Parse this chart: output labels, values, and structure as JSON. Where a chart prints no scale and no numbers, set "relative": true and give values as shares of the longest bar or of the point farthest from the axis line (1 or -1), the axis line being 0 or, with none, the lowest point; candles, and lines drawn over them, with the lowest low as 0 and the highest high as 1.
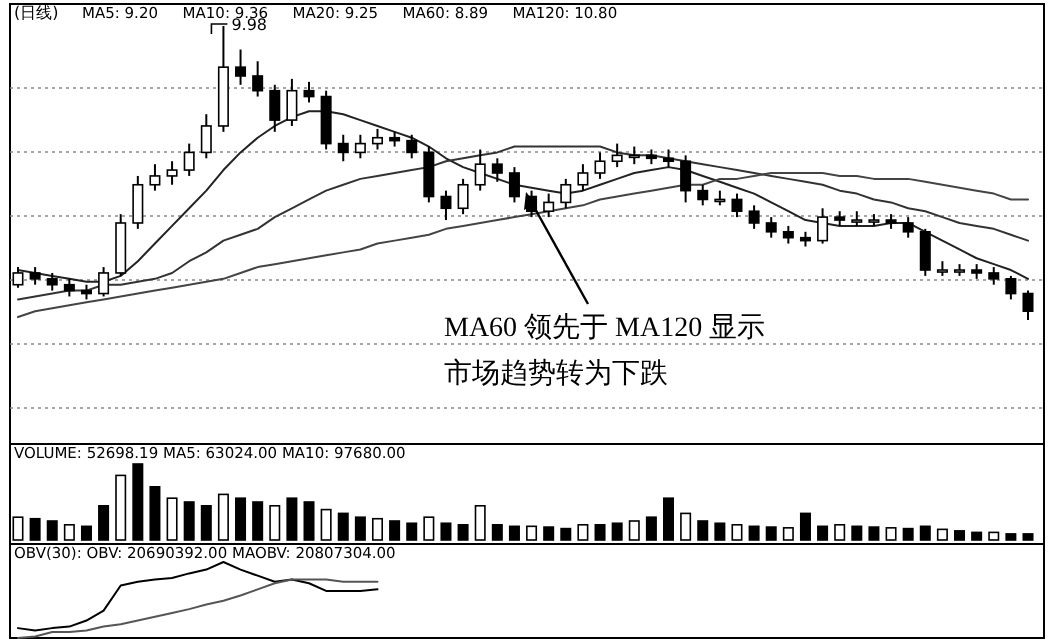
{
  "chart_data": [
    {
      "type": "candlestick",
      "title": "(日线)",
      "relative": true,
      "grid": "y",
      "categories": [
        null,
        null,
        null,
        null,
        null,
        null,
        null,
        null,
        null,
        null,
        null,
        null,
        null,
        null,
        null,
        null,
        null,
        null,
        null,
        null,
        null,
        null,
        null,
        null,
        null,
        null,
        null,
        null,
        null,
        null,
        null,
        null,
        null,
        null,
        null,
        null,
        null,
        null,
        null,
        null,
        null,
        null,
        null,
        null,
        null,
        null,
        null,
        null,
        null,
        null,
        null,
        null,
        null,
        null,
        null,
        null,
        null,
        null,
        null,
        null
      ],
      "ohlc": [
        [
          0.12,
          0.18,
          0.11,
          0.16
        ],
        [
          0.16,
          0.18,
          0.12,
          0.14
        ],
        [
          0.14,
          0.16,
          0.1,
          0.12
        ],
        [
          0.12,
          0.14,
          0.08,
          0.1
        ],
        [
          0.1,
          0.12,
          0.07,
          0.09
        ],
        [
          0.09,
          0.18,
          0.08,
          0.16
        ],
        [
          0.16,
          0.36,
          0.15,
          0.33
        ],
        [
          0.33,
          0.49,
          0.31,
          0.46
        ],
        [
          0.46,
          0.53,
          0.44,
          0.49
        ],
        [
          0.49,
          0.54,
          0.46,
          0.51
        ],
        [
          0.51,
          0.6,
          0.49,
          0.57
        ],
        [
          0.57,
          0.7,
          0.55,
          0.66
        ],
        [
          0.66,
          1.0,
          0.64,
          0.86
        ],
        [
          0.86,
          0.92,
          0.8,
          0.83
        ],
        [
          0.83,
          0.88,
          0.76,
          0.78
        ],
        [
          0.78,
          0.8,
          0.64,
          0.68
        ],
        [
          0.68,
          0.82,
          0.66,
          0.78
        ],
        [
          0.78,
          0.81,
          0.74,
          0.76
        ],
        [
          0.76,
          0.78,
          0.58,
          0.6
        ],
        [
          0.6,
          0.63,
          0.54,
          0.57
        ],
        [
          0.57,
          0.63,
          0.55,
          0.6
        ],
        [
          0.6,
          0.65,
          0.58,
          0.62
        ],
        [
          0.62,
          0.64,
          0.59,
          0.61
        ],
        [
          0.61,
          0.63,
          0.55,
          0.57
        ],
        [
          0.57,
          0.59,
          0.4,
          0.42
        ],
        [
          0.42,
          0.44,
          0.34,
          0.38
        ],
        [
          0.38,
          0.48,
          0.36,
          0.46
        ],
        [
          0.46,
          0.58,
          0.44,
          0.53
        ],
        [
          0.53,
          0.55,
          0.47,
          0.5
        ],
        [
          0.5,
          0.52,
          0.4,
          0.42
        ],
        [
          0.42,
          0.44,
          0.35,
          0.37
        ],
        [
          0.37,
          0.43,
          0.35,
          0.4
        ],
        [
          0.4,
          0.48,
          0.38,
          0.46
        ],
        [
          0.46,
          0.53,
          0.44,
          0.5
        ],
        [
          0.5,
          0.57,
          0.48,
          0.54
        ],
        [
          0.54,
          0.6,
          0.52,
          0.56
        ],
        [
          0.56,
          0.59,
          0.53,
          0.56
        ],
        [
          0.56,
          0.58,
          0.53,
          0.55
        ],
        [
          0.55,
          0.58,
          0.52,
          0.54
        ],
        [
          0.54,
          0.56,
          0.4,
          0.44
        ],
        [
          0.44,
          0.46,
          0.39,
          0.41
        ],
        [
          0.41,
          0.44,
          0.39,
          0.41
        ],
        [
          0.41,
          0.43,
          0.35,
          0.37
        ],
        [
          0.37,
          0.39,
          0.31,
          0.33
        ],
        [
          0.33,
          0.35,
          0.28,
          0.3
        ],
        [
          0.3,
          0.32,
          0.26,
          0.28
        ],
        [
          0.28,
          0.3,
          0.25,
          0.27
        ],
        [
          0.27,
          0.38,
          0.26,
          0.35
        ],
        [
          0.35,
          0.37,
          0.32,
          0.34
        ],
        [
          0.34,
          0.37,
          0.32,
          0.34
        ],
        [
          0.34,
          0.36,
          0.32,
          0.34
        ],
        [
          0.34,
          0.36,
          0.31,
          0.33
        ],
        [
          0.33,
          0.35,
          0.28,
          0.3
        ],
        [
          0.3,
          0.31,
          0.15,
          0.17
        ],
        [
          0.17,
          0.2,
          0.15,
          0.17
        ],
        [
          0.17,
          0.19,
          0.15,
          0.17
        ],
        [
          0.17,
          0.19,
          0.14,
          0.16
        ],
        [
          0.16,
          0.18,
          0.12,
          0.14
        ],
        [
          0.14,
          0.15,
          0.07,
          0.09
        ],
        [
          0.09,
          0.1,
          0.0,
          0.03
        ]
      ],
      "series": [
        {
          "type": "line",
          "color": "#222222",
          "values": [
            0.17,
            0.16,
            0.15,
            0.14,
            0.13,
            0.13,
            0.15,
            0.2,
            0.26,
            0.32,
            0.38,
            0.44,
            0.51,
            0.57,
            0.62,
            0.66,
            0.69,
            0.71,
            0.71,
            0.7,
            0.68,
            0.66,
            0.64,
            0.62,
            0.59,
            0.55,
            0.52,
            0.5,
            0.48,
            0.46,
            0.45,
            0.44,
            0.43,
            0.44,
            0.46,
            0.48,
            0.5,
            0.51,
            0.52,
            0.51,
            0.49,
            0.47,
            0.45,
            0.43,
            0.4,
            0.37,
            0.34,
            0.33,
            0.32,
            0.32,
            0.32,
            0.33,
            0.33,
            0.3,
            0.27,
            0.24,
            0.21,
            0.19,
            0.17,
            0.14
          ]
        },
        {
          "type": "line",
          "color": "#333333",
          "values": [
            0.07,
            0.08,
            0.09,
            0.1,
            0.1,
            0.12,
            0.12,
            0.13,
            0.14,
            0.16,
            0.2,
            0.23,
            0.27,
            0.29,
            0.31,
            0.35,
            0.38,
            0.41,
            0.44,
            0.46,
            0.48,
            0.49,
            0.5,
            0.51,
            0.52,
            0.54,
            0.55,
            0.56,
            0.57,
            0.59,
            0.59,
            0.59,
            0.59,
            0.59,
            0.59,
            0.57,
            0.56,
            0.56,
            0.55,
            0.54,
            0.53,
            0.52,
            0.51,
            0.5,
            0.49,
            0.48,
            0.47,
            0.46,
            0.44,
            0.43,
            0.41,
            0.4,
            0.38,
            0.37,
            0.35,
            0.33,
            0.32,
            0.31,
            0.29,
            0.27
          ]
        },
        {
          "type": "line",
          "color": "#444444",
          "values": [
            0.01,
            0.03,
            0.04,
            0.05,
            0.06,
            0.07,
            0.08,
            0.09,
            0.1,
            0.11,
            0.12,
            0.13,
            0.14,
            0.16,
            0.18,
            0.19,
            0.2,
            0.21,
            0.22,
            0.23,
            0.24,
            0.26,
            0.27,
            0.28,
            0.29,
            0.31,
            0.32,
            0.33,
            0.34,
            0.35,
            0.36,
            0.37,
            0.38,
            0.39,
            0.41,
            0.42,
            0.43,
            0.44,
            0.45,
            0.46,
            0.46,
            0.48,
            0.48,
            0.49,
            0.5,
            0.5,
            0.5,
            0.5,
            0.49,
            0.49,
            0.48,
            0.48,
            0.48,
            0.47,
            0.46,
            0.45,
            0.44,
            0.43,
            0.41,
            0.41
          ]
        }
      ],
      "annotations": [
        "MA5: 9.20",
        "MA10: 9.36",
        "MA20: 9.25",
        "MA60: 8.89",
        "MA120: 10.80",
        "9.98",
        "MA60 领先于 MA120 显示",
        "市场趋势转为下跌"
      ]
    },
    {
      "type": "bar",
      "relative": true,
      "color": "#000000",
      "categories": [
        null,
        null,
        null,
        null,
        null,
        null,
        null,
        null,
        null,
        null,
        null,
        null,
        null,
        null,
        null,
        null,
        null,
        null,
        null,
        null,
        null,
        null,
        null,
        null,
        null,
        null,
        null,
        null,
        null,
        null,
        null,
        null,
        null,
        null,
        null,
        null,
        null,
        null,
        null,
        null,
        null,
        null,
        null,
        null,
        null,
        null,
        null,
        null,
        null,
        null,
        null,
        null,
        null,
        null,
        null,
        null,
        null,
        null,
        null,
        null
      ],
      "values": [
        0.3,
        0.28,
        0.25,
        0.2,
        0.18,
        0.45,
        0.85,
        1.0,
        0.7,
        0.55,
        0.5,
        0.45,
        0.6,
        0.55,
        0.5,
        0.45,
        0.55,
        0.5,
        0.4,
        0.35,
        0.3,
        0.28,
        0.25,
        0.22,
        0.3,
        0.22,
        0.2,
        0.45,
        0.2,
        0.18,
        0.18,
        0.17,
        0.15,
        0.2,
        0.2,
        0.22,
        0.25,
        0.3,
        0.55,
        0.35,
        0.25,
        0.22,
        0.2,
        0.18,
        0.17,
        0.16,
        0.35,
        0.18,
        0.2,
        0.18,
        0.17,
        0.16,
        0.15,
        0.18,
        0.14,
        0.12,
        0.1,
        0.1,
        0.08,
        0.08
      ],
      "annotations": [
        "VOLUME: 52698.19  MA5: 63024.00  MA10: 97680.00"
      ]
    },
    {
      "type": "line",
      "relative": true,
      "categories": [
        null,
        null,
        null,
        null,
        null,
        null,
        null,
        null,
        null,
        null,
        null,
        null,
        null,
        null,
        null,
        null,
        null,
        null,
        null,
        null,
        null,
        null,
        null,
        null,
        null,
        null,
        null,
        null,
        null,
        null,
        null,
        null,
        null,
        null,
        null,
        null,
        null,
        null,
        null,
        null,
        null,
        null,
        null,
        null,
        null,
        null,
        null,
        null,
        null,
        null,
        null,
        null,
        null,
        null,
        null,
        null,
        null,
        null,
        null,
        null
      ],
      "series": [
        {
          "color": "#000000",
          "values": [
            0.13,
            0.1,
            0.13,
            0.15,
            0.23,
            0.36,
            0.69,
            0.74,
            0.77,
            0.79,
            0.85,
            0.9,
            1.0,
            0.9,
            0.82,
            0.74,
            0.77,
            0.72,
            0.62,
            0.62,
            0.62,
            0.64,
            null,
            null,
            null,
            null,
            null,
            null,
            null,
            null,
            null,
            null,
            null,
            null,
            null,
            null,
            null,
            null,
            null,
            null,
            null,
            null,
            null,
            null,
            null,
            null,
            null,
            null,
            null,
            null,
            null,
            null,
            null,
            null,
            null,
            null,
            null,
            null,
            null,
            null
          ]
        },
        {
          "color": "#555555",
          "values": [
            0.0,
            0.02,
            0.08,
            0.08,
            0.1,
            0.15,
            0.18,
            0.23,
            0.28,
            0.33,
            0.38,
            0.44,
            0.49,
            0.56,
            0.64,
            0.72,
            0.77,
            0.77,
            0.77,
            0.74,
            0.74,
            0.74,
            null,
            null,
            null,
            null,
            null,
            null,
            null,
            null,
            null,
            null,
            null,
            null,
            null,
            null,
            null,
            null,
            null,
            null,
            null,
            null,
            null,
            null,
            null,
            null,
            null,
            null,
            null,
            null,
            null,
            null,
            null,
            null,
            null,
            null,
            null,
            null,
            null,
            null
          ]
        }
      ],
      "annotations": [
        "OBV(30): OBV: 20690392.00  MAOBV: 20807304.00"
      ]
    }
  ]
}
